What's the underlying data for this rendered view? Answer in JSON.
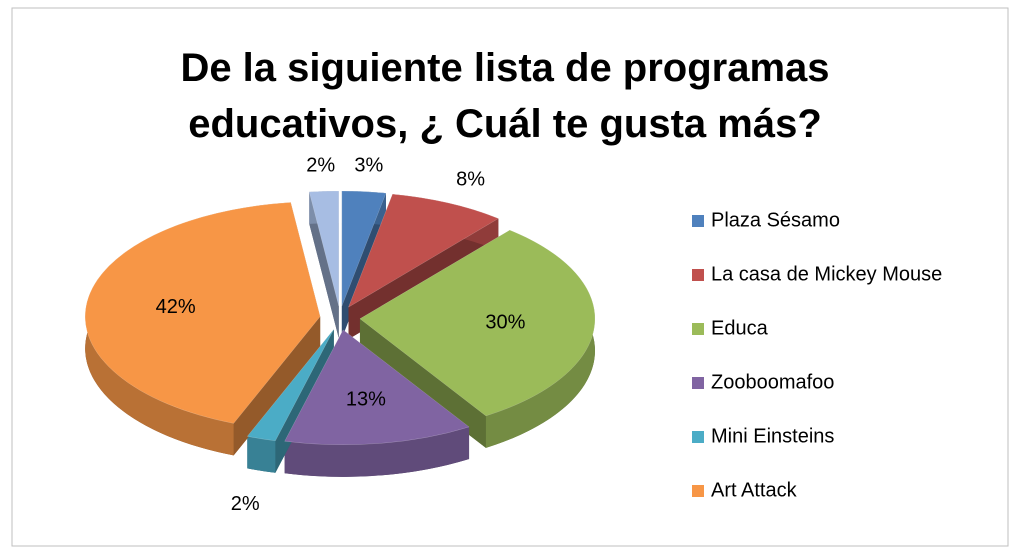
{
  "chart_data": {
    "type": "pie",
    "title": "De la siguiente lista de programas educativos, ¿ Cuál te gusta más?",
    "categories": [
      "Plaza Sésamo",
      "La casa de Mickey Mouse",
      "Educa",
      "Zooboomafoo",
      "Mini Einsteins",
      "Art Attack",
      null
    ],
    "values": [
      3,
      8,
      30,
      13,
      2,
      42,
      2
    ],
    "value_labels": [
      "3%",
      "8%",
      "30%",
      "13%",
      "2%",
      "42%",
      "2%"
    ],
    "colors": [
      "#4f81bd",
      "#c0504d",
      "#9bbb59",
      "#8064a2",
      "#4bacc6",
      "#f79646",
      "#a7bde3"
    ],
    "legend": "right"
  }
}
